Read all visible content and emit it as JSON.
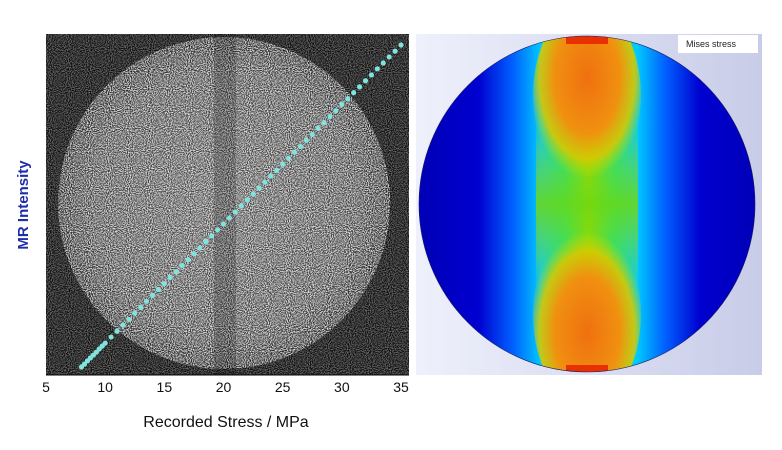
{
  "chart_data": [
    {
      "type": "scatter",
      "xlabel": "Recorded Stress / MPa",
      "ylabel": "MR Intensity",
      "xlim": [
        5,
        35
      ],
      "x_ticks": [
        "5",
        "10",
        "15",
        "20",
        "25",
        "30",
        "35"
      ],
      "grid": false,
      "legend": "none",
      "series": [
        {
          "color": "#7fe3e0",
          "x": [
            8,
            8.25,
            8.5,
            8.75,
            9,
            9.25,
            9.5,
            9.75,
            10,
            10.5,
            11,
            11.5,
            12,
            12.5,
            13,
            13.5,
            14,
            14.5,
            15,
            15.5,
            16,
            16.5,
            17,
            17.5,
            18,
            18.5,
            19,
            19.5,
            20,
            20.5,
            21,
            21.5,
            22,
            22.5,
            23,
            23.5,
            24,
            24.5,
            25,
            25.5,
            26,
            26.5,
            27,
            27.5,
            28,
            28.5,
            29,
            29.5,
            30,
            30.5,
            31,
            31.5,
            32,
            32.5,
            33,
            33.5,
            34,
            34.5,
            35
          ],
          "y_relative": [
            0,
            0.009,
            0.019,
            0.028,
            0.037,
            0.046,
            0.056,
            0.065,
            0.074,
            0.093,
            0.111,
            0.13,
            0.148,
            0.167,
            0.185,
            0.204,
            0.222,
            0.241,
            0.259,
            0.278,
            0.296,
            0.315,
            0.333,
            0.352,
            0.37,
            0.389,
            0.407,
            0.426,
            0.444,
            0.463,
            0.481,
            0.5,
            0.519,
            0.537,
            0.556,
            0.574,
            0.593,
            0.611,
            0.63,
            0.648,
            0.667,
            0.685,
            0.704,
            0.722,
            0.741,
            0.759,
            0.778,
            0.796,
            0.815,
            0.833,
            0.852,
            0.87,
            0.889,
            0.907,
            0.926,
            0.944,
            0.963,
            0.981,
            1.0
          ]
        }
      ],
      "background": "MR image (grainy grayscale disk)"
    },
    {
      "type": "heatmap",
      "title": "Mises stress",
      "colormap": [
        "#0000c8",
        "#00a8ff",
        "#00e0b0",
        "#60d020",
        "#b0e000",
        "#ff8000",
        "#e83000"
      ]
    }
  ],
  "colors": {
    "axis_text": "#111111",
    "ylabel": "#1f2fa8",
    "marker": "#7fe3e0",
    "fea_bg": "#ffffff"
  }
}
